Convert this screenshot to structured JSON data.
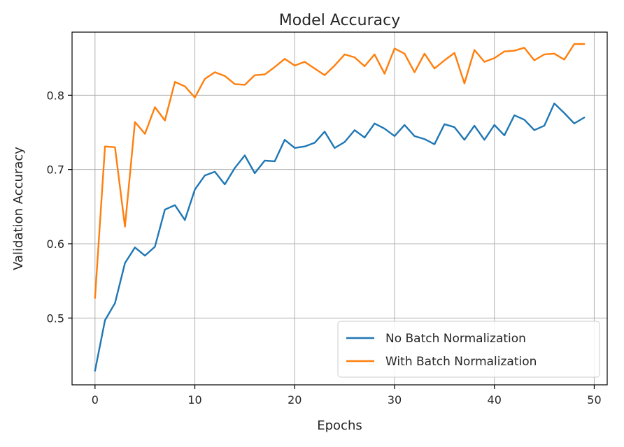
{
  "chart_data": {
    "type": "line",
    "title": "Model Accuracy",
    "xlabel": "Epochs",
    "ylabel": "Validation Accuracy",
    "xlim": [
      -2.3,
      51.3
    ],
    "ylim": [
      0.41,
      0.885
    ],
    "xticks": [
      0,
      10,
      20,
      30,
      40,
      50
    ],
    "yticks": [
      0.5,
      0.6,
      0.7,
      0.8
    ],
    "grid": true,
    "legend_position": "bottom-right",
    "x": [
      0,
      1,
      2,
      3,
      4,
      5,
      6,
      7,
      8,
      9,
      10,
      11,
      12,
      13,
      14,
      15,
      16,
      17,
      18,
      19,
      20,
      21,
      22,
      23,
      24,
      25,
      26,
      27,
      28,
      29,
      30,
      31,
      32,
      33,
      34,
      35,
      36,
      37,
      38,
      39,
      40,
      41,
      42,
      43,
      44,
      45,
      46,
      47,
      48,
      49
    ],
    "series": [
      {
        "name": "No Batch Normalization",
        "color": "#1f77b4",
        "values": [
          0.429,
          0.497,
          0.52,
          0.574,
          0.595,
          0.584,
          0.596,
          0.646,
          0.652,
          0.632,
          0.673,
          0.692,
          0.697,
          0.68,
          0.702,
          0.719,
          0.695,
          0.712,
          0.711,
          0.74,
          0.729,
          0.731,
          0.736,
          0.751,
          0.729,
          0.737,
          0.753,
          0.743,
          0.762,
          0.755,
          0.745,
          0.76,
          0.745,
          0.741,
          0.734,
          0.761,
          0.757,
          0.74,
          0.759,
          0.74,
          0.76,
          0.746,
          0.773,
          0.767,
          0.753,
          0.759,
          0.789,
          0.776,
          0.762,
          0.77
        ]
      },
      {
        "name": "With Batch Normalization",
        "color": "#ff7f0e",
        "values": [
          0.527,
          0.731,
          0.73,
          0.623,
          0.764,
          0.748,
          0.784,
          0.766,
          0.818,
          0.812,
          0.797,
          0.822,
          0.831,
          0.826,
          0.815,
          0.814,
          0.827,
          0.828,
          0.838,
          0.849,
          0.84,
          0.845,
          0.836,
          0.827,
          0.84,
          0.855,
          0.851,
          0.839,
          0.855,
          0.829,
          0.863,
          0.856,
          0.831,
          0.856,
          0.836,
          0.847,
          0.857,
          0.816,
          0.861,
          0.845,
          0.85,
          0.859,
          0.86,
          0.864,
          0.847,
          0.855,
          0.856,
          0.848,
          0.869,
          0.869
        ]
      }
    ]
  }
}
